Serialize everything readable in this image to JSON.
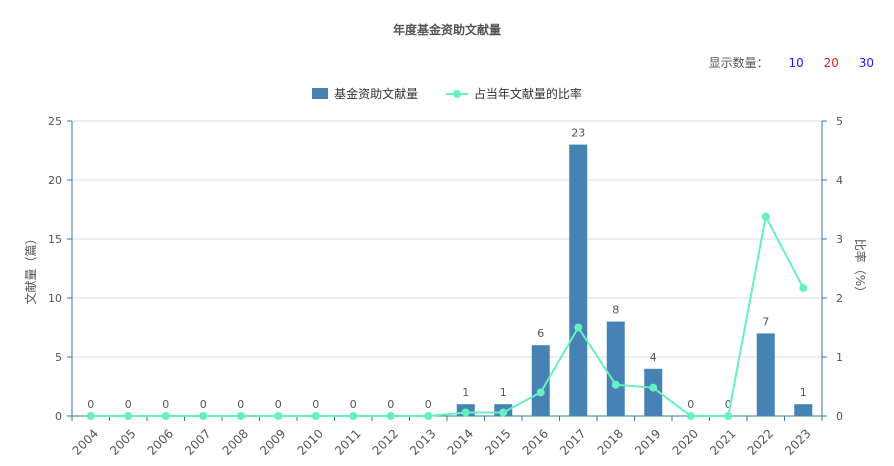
{
  "title": "年度基金资助文献量",
  "count_control": {
    "label": "显示数量：",
    "options": [
      {
        "label": "10",
        "color": "#1a1aff"
      },
      {
        "label": "20",
        "color": "#e32222"
      },
      {
        "label": "30",
        "color": "#1a1aff"
      }
    ]
  },
  "colors": {
    "bar": "#4682b4",
    "line": "#66f0c0",
    "axis": "#2e7ba6",
    "grid": "#dddddd",
    "text": "#555555"
  },
  "chart_data": {
    "type": "bar",
    "categories": [
      "2004",
      "2005",
      "2006",
      "2007",
      "2008",
      "2009",
      "2010",
      "2011",
      "2012",
      "2013",
      "2014",
      "2015",
      "2016",
      "2017",
      "2018",
      "2019",
      "2020",
      "2021",
      "2022",
      "2023"
    ],
    "series": [
      {
        "name": "基金资助文献量",
        "type": "bar",
        "axis": "left",
        "values": [
          0,
          0,
          0,
          0,
          0,
          0,
          0,
          0,
          0,
          0,
          1,
          1,
          6,
          23,
          8,
          4,
          0,
          0,
          7,
          1
        ]
      },
      {
        "name": "占当年文献量的比率",
        "type": "line",
        "axis": "right",
        "values": [
          0,
          0,
          0,
          0,
          0,
          0,
          0,
          0,
          0,
          0,
          0.06,
          0.06,
          0.4,
          1.5,
          0.53,
          0.48,
          0,
          0,
          3.38,
          2.17
        ]
      }
    ],
    "ylabel": "文献量（篇）",
    "ylabel_right": "比率（%）",
    "ylim": [
      0,
      25
    ],
    "ylim_right": [
      0,
      5
    ],
    "yticks": [
      0,
      5,
      10,
      15,
      20,
      25
    ],
    "yticks_right": [
      0,
      1,
      2,
      3,
      4,
      5
    ],
    "grid": true,
    "legend": "top-center",
    "data_labels": true
  }
}
